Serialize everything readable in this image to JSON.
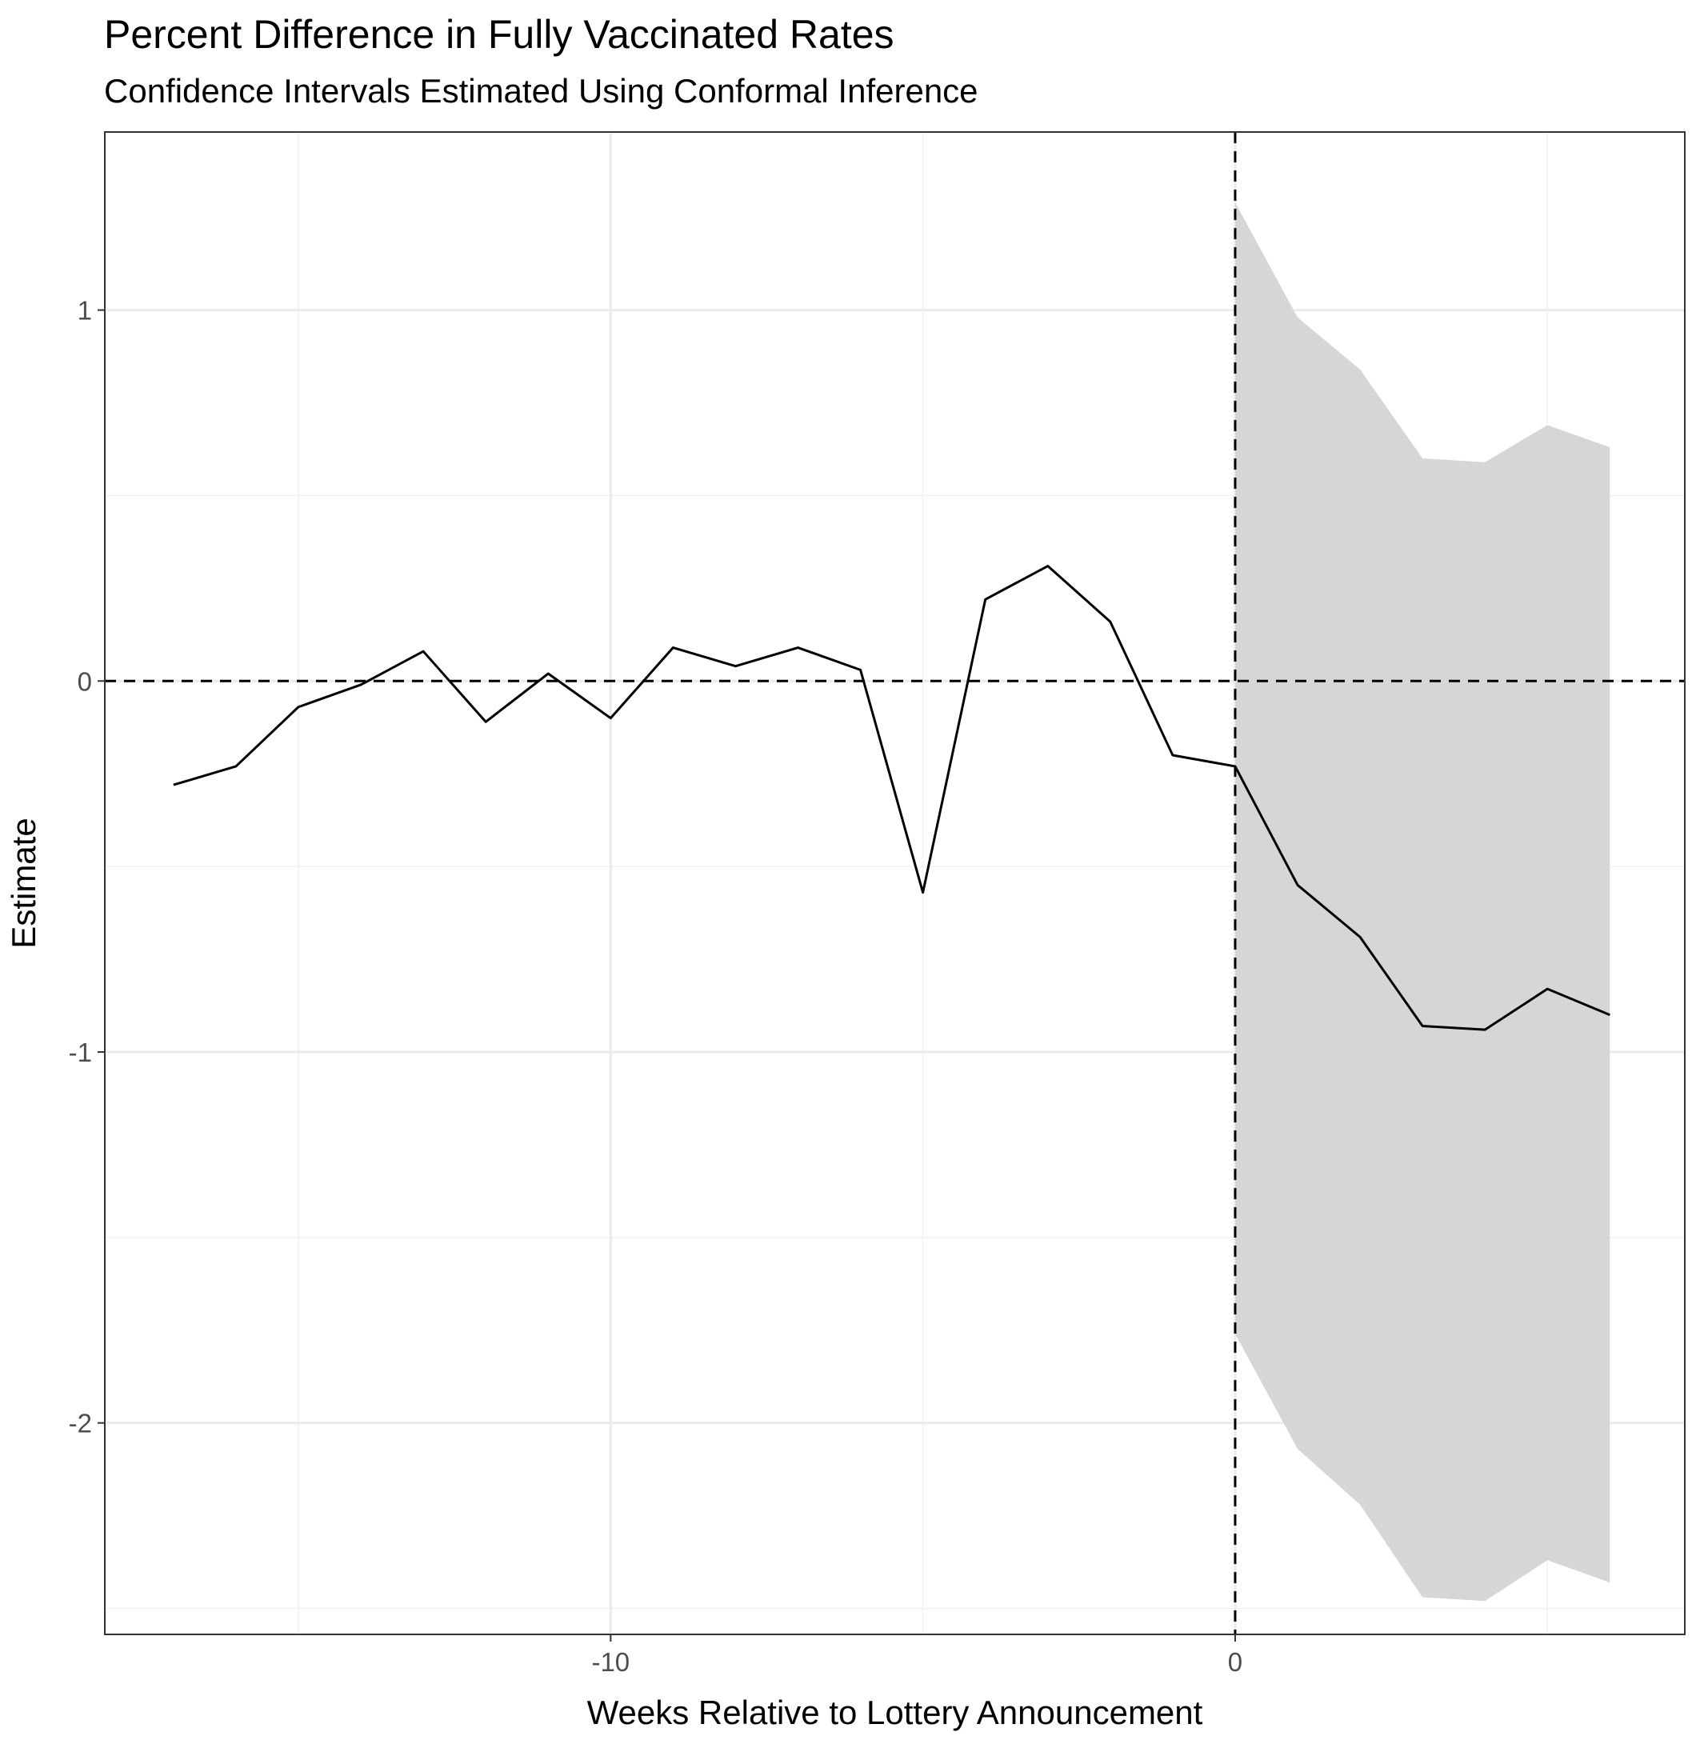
{
  "chart_data": {
    "type": "line",
    "title": "Percent Difference in Fully Vaccinated Rates",
    "subtitle": "Confidence Intervals Estimated Using Conformal Inference",
    "xlabel": "Weeks Relative to Lottery Announcement",
    "ylabel": "Estimate",
    "xlim": [
      -18.1,
      7.2
    ],
    "ylim": [
      -2.57,
      1.48
    ],
    "x_ticks": [
      -10,
      0
    ],
    "y_ticks": [
      -2,
      -1,
      0,
      1
    ],
    "x_tick_labels": [
      "-10",
      "0"
    ],
    "y_tick_labels": [
      "-2",
      "-1",
      "0",
      "1"
    ],
    "grid": true,
    "reference_lines": [
      {
        "axis": "y",
        "value": 0,
        "style": "dashed"
      },
      {
        "axis": "x",
        "value": 0,
        "style": "dashed"
      }
    ],
    "series": [
      {
        "x": [
          -17,
          -16,
          -15,
          -14,
          -13,
          -12,
          -11,
          -10,
          -9,
          -8,
          -7,
          -6,
          -5,
          -4,
          -3,
          -2,
          -1,
          0,
          1,
          2,
          3,
          4,
          5,
          6
        ],
        "values": [
          -0.28,
          -0.23,
          -0.07,
          -0.01,
          0.08,
          -0.11,
          0.02,
          -0.1,
          0.09,
          0.04,
          0.09,
          0.03,
          -0.57,
          0.22,
          0.31,
          0.16,
          -0.2,
          -0.23,
          -0.55,
          -0.69,
          -0.93,
          -0.94,
          -0.83,
          -0.9
        ]
      }
    ],
    "confidence_band": {
      "x": [
        0,
        1,
        2,
        3,
        4,
        5,
        6
      ],
      "upper": [
        1.29,
        0.98,
        0.84,
        0.6,
        0.59,
        0.69,
        0.63
      ],
      "lower": [
        -1.76,
        -2.07,
        -2.22,
        -2.47,
        -2.48,
        -2.37,
        -2.43
      ]
    },
    "colors": {
      "line": "#000000",
      "band": "#d6d6d6",
      "grid_major": "#ebebeb",
      "grid_minor": "#f2f2f2",
      "panel_border": "#333333",
      "tick_label": "#4d4d4d"
    }
  }
}
